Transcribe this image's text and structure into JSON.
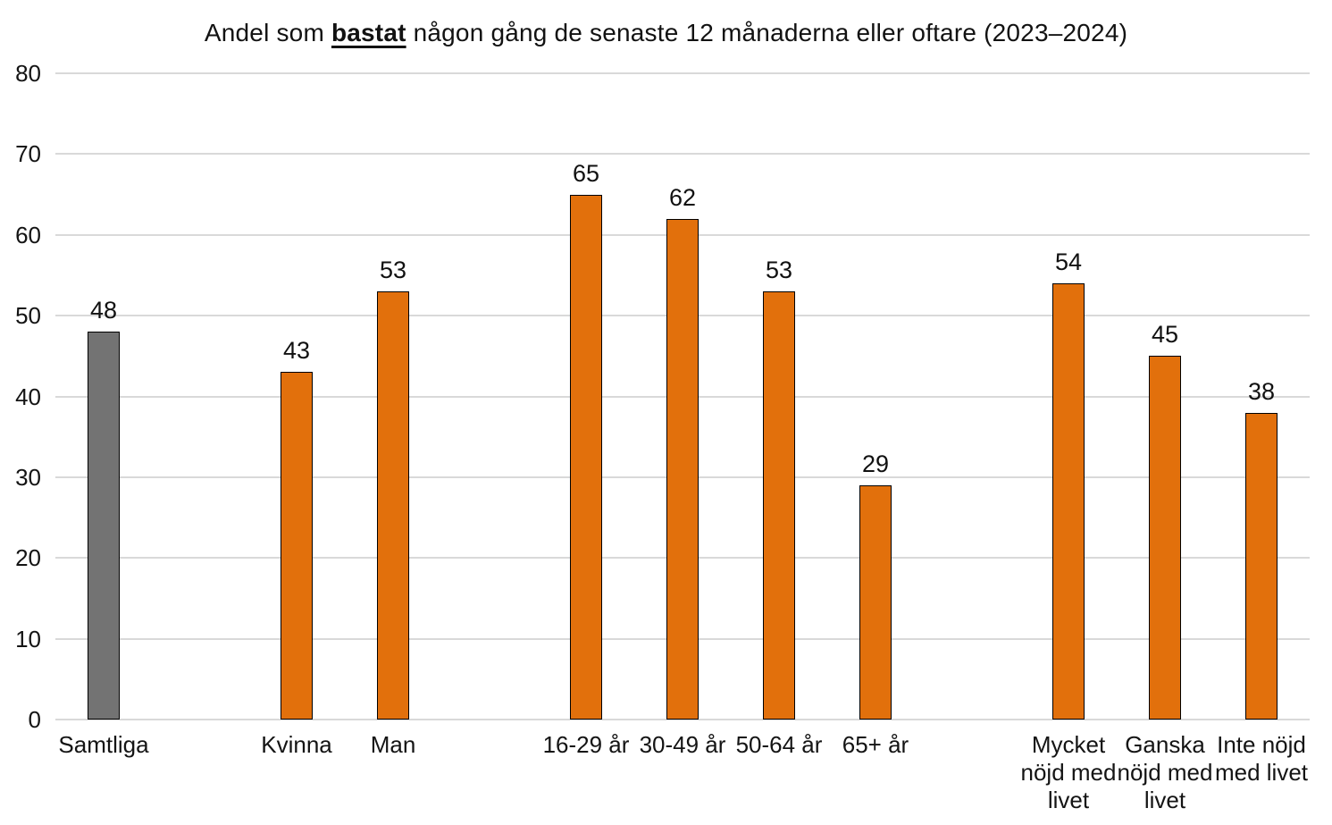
{
  "title": {
    "prefix": "Andel som ",
    "highlight": "bastat",
    "suffix": " någon gång de senaste 12 månaderna eller oftare (2023–2024)"
  },
  "chart_data": {
    "type": "bar",
    "title": "Andel som bastat någon gång de senaste 12 månaderna eller oftare (2023–2024)",
    "xlabel": "",
    "ylabel": "",
    "ylim": [
      0,
      80
    ],
    "yticks": [
      0,
      10,
      20,
      30,
      40,
      50,
      60,
      70,
      80
    ],
    "grid": true,
    "legend_position": "none",
    "categories": [
      "Samtliga",
      "Kvinna",
      "Man",
      "16-29 år",
      "30-49 år",
      "50-64 år",
      "65+ år",
      "Mycket nöjd med livet",
      "Ganska nöjd med livet",
      "Inte nöjd med livet"
    ],
    "values": [
      48,
      43,
      53,
      65,
      62,
      53,
      29,
      54,
      45,
      38
    ],
    "bars": [
      {
        "label": "Samtliga",
        "lines": [
          "Samtliga"
        ],
        "value": 48,
        "slot": 0,
        "color": "#737373"
      },
      {
        "label": "Kvinna",
        "lines": [
          "Kvinna"
        ],
        "value": 43,
        "slot": 2,
        "color": "#E2700C"
      },
      {
        "label": "Man",
        "lines": [
          "Man"
        ],
        "value": 53,
        "slot": 3,
        "color": "#E2700C"
      },
      {
        "label": "16-29 år",
        "lines": [
          "16-29 år"
        ],
        "value": 65,
        "slot": 5,
        "color": "#E2700C"
      },
      {
        "label": "30-49 år",
        "lines": [
          "30-49 år"
        ],
        "value": 62,
        "slot": 6,
        "color": "#E2700C"
      },
      {
        "label": "50-64 år",
        "lines": [
          "50-64 år"
        ],
        "value": 53,
        "slot": 7,
        "color": "#E2700C"
      },
      {
        "label": "65+ år",
        "lines": [
          "65+ år"
        ],
        "value": 29,
        "slot": 8,
        "color": "#E2700C"
      },
      {
        "label": "Mycket nöjd med livet",
        "lines": [
          "Mycket",
          "nöjd med",
          "livet"
        ],
        "value": 54,
        "slot": 10,
        "color": "#E2700C"
      },
      {
        "label": "Ganska nöjd med livet",
        "lines": [
          "Ganska",
          "nöjd med",
          "livet"
        ],
        "value": 45,
        "slot": 11,
        "color": "#E2700C"
      },
      {
        "label": "Inte nöjd med livet",
        "lines": [
          "Inte nöjd",
          "med livet"
        ],
        "value": 38,
        "slot": 12,
        "color": "#E2700C"
      }
    ],
    "total_slots": 13,
    "colors": {
      "highlight_bar": "#737373",
      "default_bar": "#E2700C",
      "bar_border": "#000000",
      "gridline": "#D9D9D9",
      "text": "#111111",
      "background": "#FFFFFF"
    }
  }
}
